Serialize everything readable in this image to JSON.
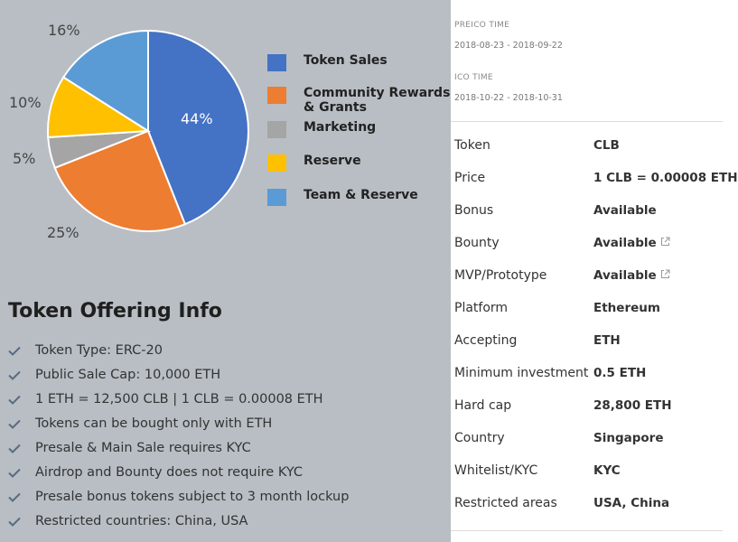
{
  "chart_data": {
    "type": "pie",
    "slices": [
      {
        "label": "Token Sales",
        "value": 44,
        "pct_label": "44%",
        "color": "#4472c4"
      },
      {
        "label": "Community Rewards & Grants",
        "value": 25,
        "pct_label": "25%",
        "color": "#ed7d31"
      },
      {
        "label": "Marketing",
        "value": 5,
        "pct_label": "5%",
        "color": "#a5a5a5"
      },
      {
        "label": "Reserve",
        "value": 10,
        "pct_label": "10%",
        "color": "#ffc000"
      },
      {
        "label": "Team & Reserve",
        "value": 16,
        "pct_label": "16%",
        "color": "#5b9bd5"
      }
    ],
    "legend_placement": "right"
  },
  "legend": {
    "items": [
      {
        "label_line1": "Token Sales",
        "label_line2": "",
        "color": "#4472c4"
      },
      {
        "label_line1": "Community Rewards",
        "label_line2": "& Grants",
        "color": "#ed7d31"
      },
      {
        "label_line1": "Marketing",
        "label_line2": "",
        "color": "#a5a5a5"
      },
      {
        "label_line1": "Reserve",
        "label_line2": "",
        "color": "#ffc000"
      },
      {
        "label_line1": "Team & Reserve",
        "label_line2": "",
        "color": "#5b9bd5"
      }
    ]
  },
  "offering": {
    "title": "Token Offering Info",
    "items": [
      "Token Type: ERC-20",
      "Public Sale Cap: 10,000 ETH",
      "1 ETH = 12,500 CLB | 1 CLB = 0.00008 ETH",
      "Tokens can be bought only with ETH",
      "Presale & Main Sale requires KYC",
      "Airdrop and Bounty does not require KYC",
      "Presale bonus tokens subject to 3 month lockup",
      "Restricted countries: China, USA"
    ],
    "check_icon": "check-icon",
    "check_color": "#5a6b80"
  },
  "timeline": {
    "preico_label": "PREICO TIME",
    "preico_value": "2018-08-23 - 2018-09-22",
    "ico_label": "ICO TIME",
    "ico_value": "2018-10-22 - 2018-10-31"
  },
  "details": [
    {
      "key": "Token",
      "value": "CLB",
      "link": false
    },
    {
      "key": "Price",
      "value": "1 CLB = 0.00008 ETH",
      "link": false
    },
    {
      "key": "Bonus",
      "value": "Available",
      "link": false
    },
    {
      "key": "Bounty",
      "value": "Available",
      "link": true
    },
    {
      "key": "MVP/Prototype",
      "value": "Available",
      "link": true
    },
    {
      "key": "Platform",
      "value": "Ethereum",
      "link": false
    },
    {
      "key": "Accepting",
      "value": "ETH",
      "link": false
    },
    {
      "key": "Minimum investment",
      "value": "0.5 ETH",
      "link": false
    },
    {
      "key": "Hard cap",
      "value": "28,800 ETH",
      "link": false
    },
    {
      "key": "Country",
      "value": "Singapore",
      "link": false
    },
    {
      "key": "Whitelist/KYC",
      "value": "KYC",
      "link": false
    },
    {
      "key": "Restricted areas",
      "value": "USA, China",
      "link": false
    }
  ]
}
